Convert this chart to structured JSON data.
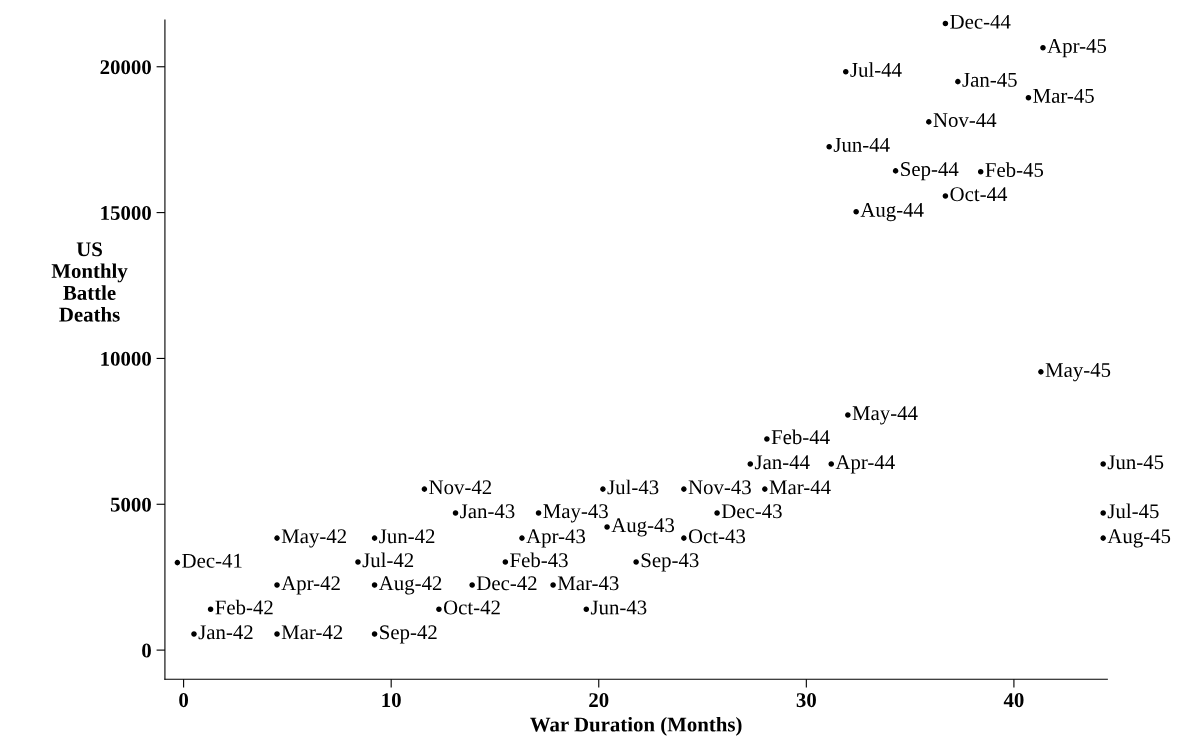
{
  "chart_data": {
    "type": "scatter",
    "xlabel": "War Duration (Months)",
    "ylabel": "US\nMonthly\nBattle\nDeaths",
    "xlim": [
      -0.9,
      44.5
    ],
    "ylim": [
      -1000,
      21600
    ],
    "xticks": [
      0,
      10,
      20,
      30,
      40
    ],
    "yticks": [
      0,
      5000,
      10000,
      15000,
      20000
    ],
    "marker": "circle",
    "x": [
      -0.3,
      0.5,
      1.3,
      4.5,
      4.5,
      4.5,
      9.2,
      8.4,
      9.2,
      9.2,
      12.3,
      11.6,
      13.9,
      13.1,
      15.5,
      17.8,
      16.3,
      17.1,
      19.4,
      20.2,
      20.4,
      21.8,
      24.1,
      24.1,
      25.7,
      27.3,
      28.1,
      28.0,
      31.2,
      32.0,
      31.1,
      31.9,
      32.4,
      34.3,
      36.7,
      35.9,
      36.7,
      37.3,
      38.4,
      40.7,
      41.4,
      41.3,
      44.3,
      44.3,
      44.3
    ],
    "values": [
      3000,
      550,
      1400,
      550,
      2230,
      3840,
      3840,
      3020,
      2230,
      550,
      1400,
      5520,
      2230,
      4700,
      3020,
      2230,
      3840,
      4700,
      1400,
      5520,
      4220,
      3020,
      3840,
      5520,
      4700,
      6380,
      7240,
      5520,
      6380,
      8060,
      17260,
      19830,
      15030,
      16430,
      15570,
      18110,
      21480,
      19490,
      16400,
      18940,
      20650,
      9540,
      6380,
      4700,
      3840
    ],
    "value_labels": [
      "Dec-41",
      "Jan-42",
      "Feb-42",
      "Mar-42",
      "Apr-42",
      "May-42",
      "Jun-42",
      "Jul-42",
      "Aug-42",
      "Sep-42",
      "Oct-42",
      "Nov-42",
      "Dec-42",
      "Jan-43",
      "Feb-43",
      "Mar-43",
      "Apr-43",
      "May-43",
      "Jun-43",
      "Jul-43",
      "Aug-43",
      "Sep-43",
      "Oct-43",
      "Nov-43",
      "Dec-43",
      "Jan-44",
      "Feb-44",
      "Mar-44",
      "Apr-44",
      "May-44",
      "Jun-44",
      "Jul-44",
      "Aug-44",
      "Sep-44",
      "Oct-44",
      "Nov-44",
      "Dec-44",
      "Jan-45",
      "Feb-45",
      "Mar-45",
      "Apr-45",
      "May-45",
      "Jun-45",
      "Jul-45",
      "Aug-45"
    ]
  }
}
